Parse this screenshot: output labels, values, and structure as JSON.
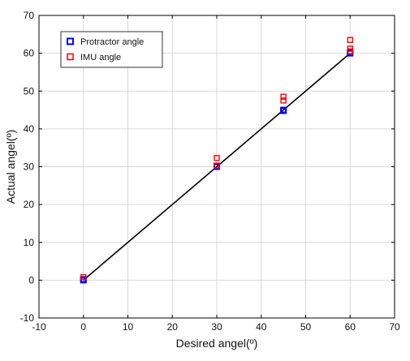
{
  "chart_data": {
    "type": "scatter",
    "xlabel": "Desired angel(º)",
    "ylabel": "Actual angel(º)",
    "xlim": [
      -10,
      70
    ],
    "ylim": [
      -10,
      70
    ],
    "xticks": [
      -10,
      0,
      10,
      20,
      30,
      40,
      50,
      60,
      70
    ],
    "yticks": [
      -10,
      0,
      10,
      20,
      30,
      40,
      50,
      60,
      70
    ],
    "grid": true,
    "legend_position": "top-left",
    "fit_line": {
      "x": [
        0,
        60
      ],
      "y": [
        0,
        60
      ],
      "color": "#000000"
    },
    "series": [
      {
        "name": "Protractor angle",
        "marker": "square",
        "color": "#0000ff",
        "points": [
          [
            0,
            0
          ],
          [
            0,
            0.2
          ],
          [
            30,
            30
          ],
          [
            30,
            30.2
          ],
          [
            45,
            45
          ],
          [
            45,
            44.8
          ],
          [
            60,
            60
          ],
          [
            60,
            60.2
          ]
        ]
      },
      {
        "name": "IMU angle",
        "marker": "square",
        "color": "#ff0000",
        "points": [
          [
            0,
            0.8
          ],
          [
            30,
            32.3
          ],
          [
            30,
            30.3
          ],
          [
            45,
            48.5
          ],
          [
            45,
            47.5
          ],
          [
            60,
            63.5
          ],
          [
            60,
            61.2
          ],
          [
            60,
            60.5
          ]
        ]
      }
    ]
  }
}
